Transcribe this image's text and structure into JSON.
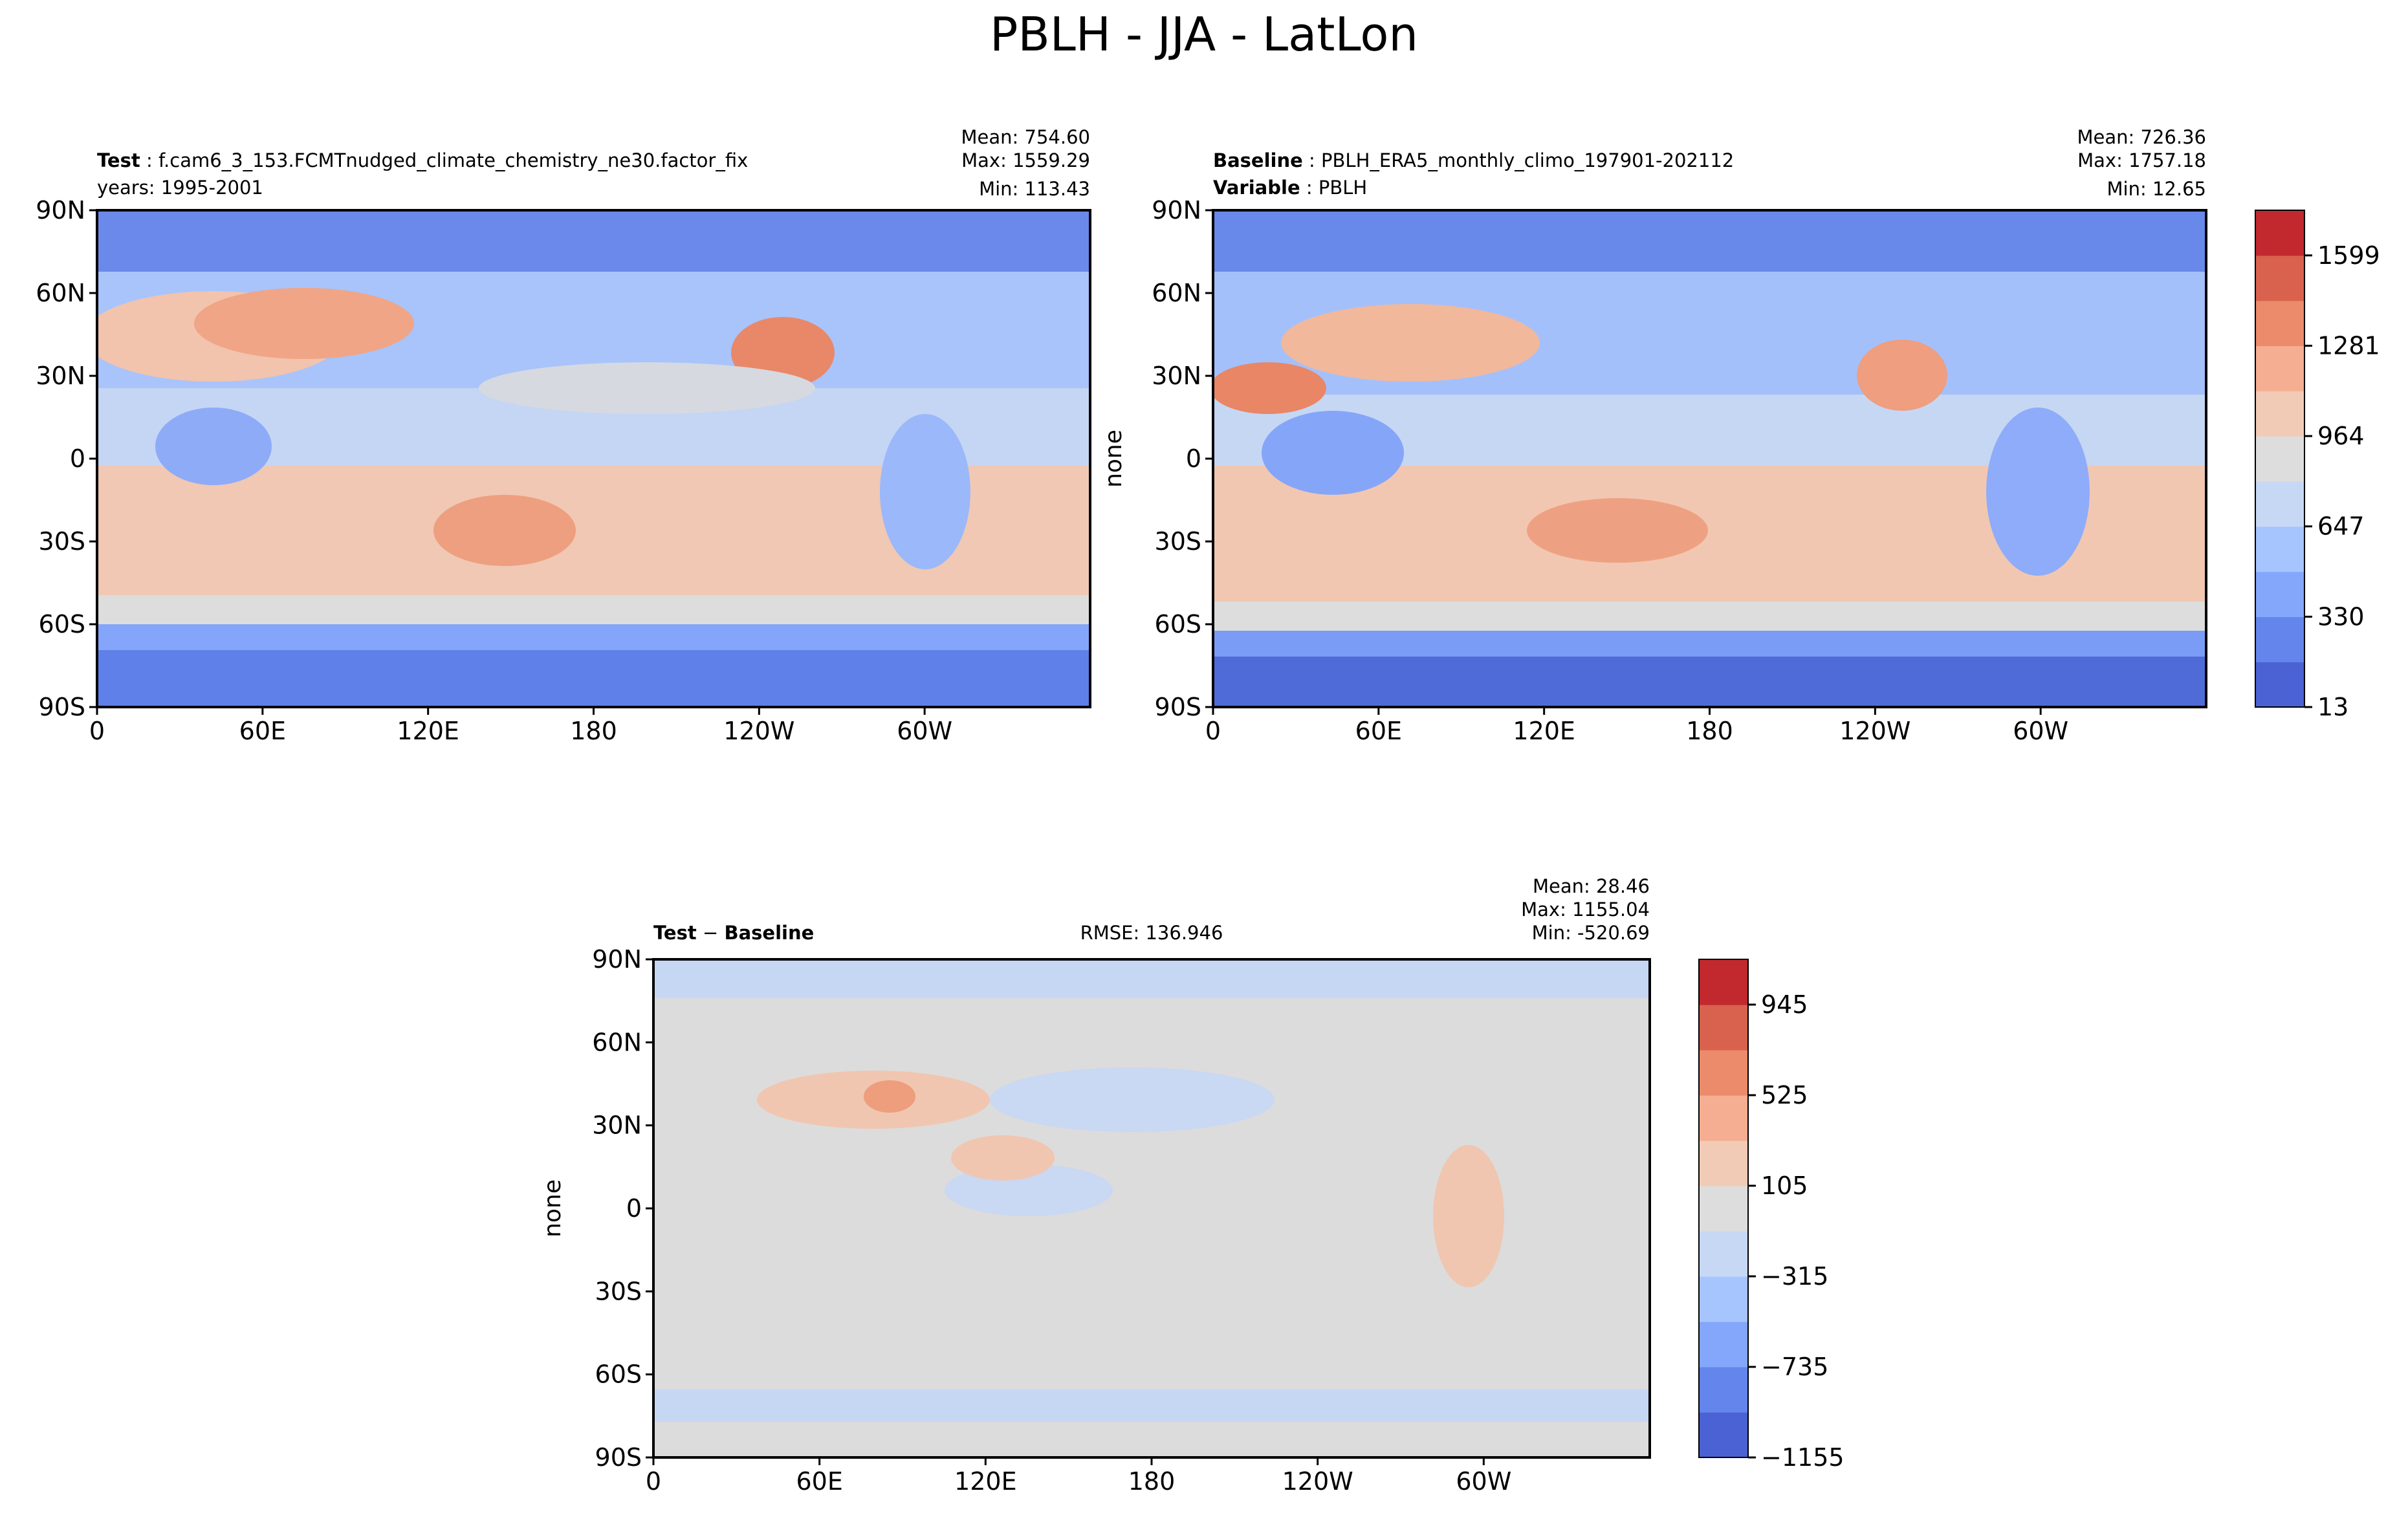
{
  "page": {
    "suptitle": "PBLH - JJA - LatLon"
  },
  "chart_data": [
    {
      "type": "heatmap",
      "panel": "test",
      "title_left_bold": "Test",
      "title_left_text": "f.cam6_3_153.FCMTnudged_climate_chemistry_ne30.factor_fix",
      "title_left_line2": "years: 1995-2001",
      "stats": [
        "Mean: 754.60",
        "Max: 1559.29",
        "Min: 113.43"
      ],
      "ylabel": "",
      "xticks": [
        "0",
        "60E",
        "120E",
        "180",
        "120W",
        "60W"
      ],
      "yticks": [
        "90N",
        "60N",
        "30N",
        "0",
        "30S",
        "60S",
        "90S"
      ],
      "xlim": [
        0,
        360
      ],
      "ylim": [
        -90,
        90
      ],
      "grid": false
    },
    {
      "type": "heatmap",
      "panel": "baseline",
      "title_left_bold": "Baseline",
      "title_left_text": "PBLH_ERA5_monthly_climo_197901-202112",
      "title_left_line2_bold": "Variable",
      "title_left_line2_text": "PBLH",
      "stats": [
        "Mean: 726.36",
        "Max: 1757.18",
        "Min: 12.65"
      ],
      "ylabel": "none",
      "xticks": [
        "0",
        "60E",
        "120E",
        "180",
        "120W",
        "60W"
      ],
      "yticks": [
        "90N",
        "60N",
        "30N",
        "0",
        "30S",
        "60S",
        "90S"
      ],
      "xlim": [
        0,
        360
      ],
      "ylim": [
        -90,
        90
      ],
      "grid": false,
      "colorbar": {
        "ticks": [
          "1599",
          "1281",
          "964",
          "647",
          "330",
          "13"
        ],
        "range": [
          13,
          1757
        ],
        "colors": [
          "#4a62d3",
          "#6485ec",
          "#84a7fb",
          "#a6c4fe",
          "#c6d8f3",
          "#dddddd",
          "#f2cbb7",
          "#f5ae91",
          "#ec8a6c",
          "#d8624d",
          "#c1292f"
        ]
      }
    },
    {
      "type": "heatmap",
      "panel": "diff",
      "title_left_bold": "Test",
      "title_left_op": " − ",
      "title_left_bold2": "Baseline",
      "title_center": "RMSE: 136.946",
      "stats": [
        "Mean: 28.46",
        "Max: 1155.04",
        "Min: -520.69"
      ],
      "ylabel": "none",
      "xticks": [
        "0",
        "60E",
        "120E",
        "180",
        "120W",
        "60W"
      ],
      "yticks": [
        "90N",
        "60N",
        "30N",
        "0",
        "30S",
        "60S",
        "90S"
      ],
      "xlim": [
        0,
        360
      ],
      "ylim": [
        -90,
        90
      ],
      "grid": false,
      "colorbar": {
        "ticks": [
          "945",
          "525",
          "105",
          "−315",
          "−735",
          "−1155"
        ],
        "range": [
          -1155,
          1155
        ],
        "colors": [
          "#4a62d3",
          "#6485ec",
          "#84a7fb",
          "#a6c4fe",
          "#c6d8f3",
          "#dddddd",
          "#f2cbb7",
          "#f5ae91",
          "#ec8a6c",
          "#d8624d",
          "#c1292f"
        ]
      }
    }
  ]
}
